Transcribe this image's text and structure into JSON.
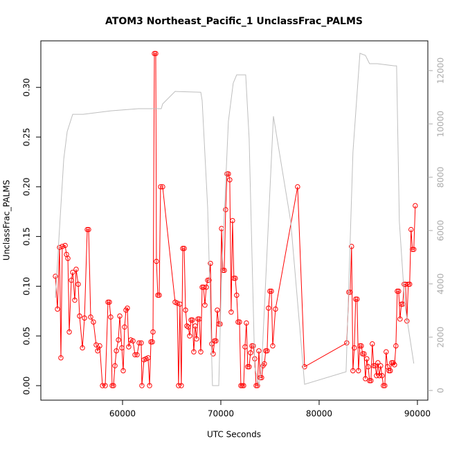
{
  "chart_data": {
    "type": "line",
    "title": "ATOM3 Northeast_Pacific_1 UnclassFrac_PALMS",
    "x_label": "UTC Seconds",
    "y_label": "UnclassFrac_PALMS",
    "xlim": [
      51690,
      91060
    ],
    "ylim": [
      -0.0146,
      0.3468
    ],
    "y2lim": [
      -364,
      13117
    ],
    "xticks": [
      60000,
      70000,
      80000,
      90000
    ],
    "yticks": [
      {
        "value": 0,
        "label": "0.00"
      },
      {
        "value": 0.05,
        "label": "0.05"
      },
      {
        "value": 0.1,
        "label": "0.10"
      },
      {
        "value": 0.15,
        "label": "0.15"
      },
      {
        "value": 0.2,
        "label": "0.20"
      },
      {
        "value": 0.25,
        "label": "0.25"
      },
      {
        "value": 0.3,
        "label": "0.30"
      }
    ],
    "y2ticks": [
      0,
      2000,
      4000,
      6000,
      8000,
      10000,
      12000
    ],
    "series": [
      {
        "color": "#ff0000",
        "markers": true,
        "x": [
          53170,
          53380,
          53590,
          53730,
          53870,
          54160,
          54300,
          54440,
          54580,
          54790,
          54930,
          55140,
          55280,
          55490,
          55630,
          55920,
          56130,
          56410,
          56550,
          56760,
          57040,
          57320,
          57470,
          57680,
          57960,
          58240,
          58520,
          58660,
          58800,
          58940,
          59080,
          59230,
          59370,
          59580,
          59720,
          59930,
          60070,
          60210,
          60350,
          60490,
          60630,
          60840,
          61060,
          61270,
          61480,
          61690,
          61900,
          61970,
          62180,
          62390,
          62600,
          62750,
          62890,
          63030,
          63100,
          63240,
          63380,
          63450,
          63590,
          63730,
          63870,
          64080,
          65350,
          65560,
          65700,
          65840,
          65980,
          66130,
          66270,
          66410,
          66550,
          66690,
          66830,
          66970,
          67110,
          67250,
          67390,
          67530,
          67670,
          67810,
          67960,
          68100,
          68240,
          68380,
          68520,
          68660,
          68800,
          68940,
          69080,
          69220,
          69360,
          69500,
          69640,
          69790,
          69930,
          70070,
          70210,
          70350,
          70490,
          70630,
          70770,
          70910,
          71050,
          71190,
          71330,
          71470,
          71610,
          71750,
          71900,
          72040,
          72180,
          72320,
          72460,
          72600,
          72740,
          72880,
          73020,
          73160,
          73300,
          73450,
          73590,
          73730,
          73870,
          74010,
          74150,
          74290,
          74430,
          74570,
          74710,
          74850,
          74990,
          75140,
          75280,
          75560,
          77810,
          78520,
          82810,
          83020,
          83160,
          83300,
          83440,
          83580,
          83720,
          83860,
          84000,
          84150,
          84290,
          84430,
          84570,
          84710,
          84850,
          84990,
          85130,
          85270,
          85410,
          85560,
          85700,
          85840,
          85980,
          86120,
          86260,
          86400,
          86540,
          86680,
          86820,
          86960,
          87100,
          87240,
          87380,
          87530,
          87670,
          87810,
          87950,
          88090,
          88230,
          88370,
          88510,
          88650,
          88790,
          88930,
          89070,
          89210,
          89350,
          89490,
          89630,
          89780
        ],
        "values": [
          0.11,
          0.077,
          0.139,
          0.028,
          0.14,
          0.141,
          0.132,
          0.128,
          0.054,
          0.106,
          0.114,
          0.086,
          0.117,
          0.102,
          0.07,
          0.038,
          0.068,
          0.157,
          0.157,
          0.069,
          0.064,
          0.041,
          0.035,
          0.04,
          0,
          0,
          0.084,
          0.084,
          0.069,
          0,
          0,
          0.02,
          0.035,
          0.046,
          0.07,
          0.038,
          0.015,
          0.059,
          0.076,
          0.078,
          0.039,
          0.046,
          0.045,
          0.031,
          0.031,
          0.043,
          0.043,
          0,
          0.026,
          0.027,
          0.028,
          0,
          0.044,
          0.044,
          0.054,
          0.334,
          0.334,
          0.125,
          0.091,
          0.091,
          0.2,
          0.2,
          0.084,
          0.083,
          0,
          0.082,
          0,
          0.138,
          0.138,
          0.076,
          0.06,
          0.059,
          0.05,
          0.066,
          0.066,
          0.034,
          0.06,
          0.047,
          0.067,
          0.067,
          0.034,
          0.099,
          0.099,
          0.081,
          0.099,
          0.106,
          0.106,
          0.123,
          0.042,
          0.032,
          0.045,
          0.045,
          0.076,
          0.062,
          0.062,
          0.158,
          0.116,
          0.116,
          0.177,
          0.213,
          0.213,
          0.207,
          0.074,
          0.166,
          0.108,
          0.108,
          0.091,
          0.064,
          0.064,
          0,
          0,
          0,
          0.039,
          0.063,
          0.019,
          0.019,
          0.033,
          0.04,
          0.04,
          0.027,
          0,
          0,
          0.035,
          0.008,
          0.008,
          0.02,
          0.022,
          0.035,
          0.035,
          0.078,
          0.095,
          0.095,
          0.04,
          0.077,
          0.2,
          0.019,
          0.043,
          0.094,
          0.094,
          0.14,
          0.015,
          0.038,
          0.087,
          0.087,
          0.015,
          0.04,
          0.04,
          0.032,
          0.032,
          0.007,
          0.027,
          0.019,
          0.005,
          0.005,
          0.042,
          0.02,
          0.02,
          0.01,
          0.023,
          0.01,
          0.02,
          0.01,
          0,
          0,
          0.034,
          0.019,
          0.015,
          0.015,
          0.023,
          0.023,
          0.021,
          0.04,
          0.095,
          0.095,
          0.067,
          0.082,
          0.082,
          0.102,
          0.102,
          0.065,
          0.102,
          0.102,
          0.157,
          0.137,
          0.137,
          0.181
        ]
      },
      {
        "color": "#bebebe",
        "axis": "y2",
        "markers": false,
        "x": [
          53170,
          53590,
          54020,
          54370,
          54930,
          55990,
          58800,
          61620,
          63940,
          64080,
          65350,
          67960,
          68100,
          68660,
          69150,
          69790,
          70070,
          70770,
          71260,
          71610,
          72530,
          72880,
          73450,
          73870,
          74150,
          75350,
          77110,
          78520,
          82740,
          83440,
          84150,
          84710,
          85130,
          85910,
          87670,
          87880,
          88160,
          88720,
          89630
        ],
        "values": [
          3480,
          6080,
          8680,
          9710,
          10360,
          10360,
          10490,
          10570,
          10570,
          10750,
          11220,
          11190,
          10880,
          6860,
          180,
          180,
          4260,
          10100,
          11530,
          11840,
          11840,
          9450,
          880,
          180,
          880,
          10290,
          6340,
          230,
          700,
          8940,
          12650,
          12570,
          12260,
          12260,
          12180,
          12180,
          6340,
          3220,
          1010
        ]
      }
    ]
  }
}
